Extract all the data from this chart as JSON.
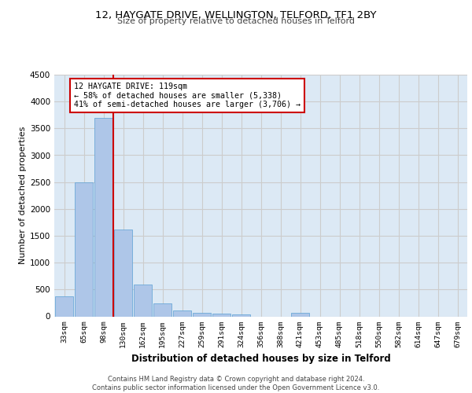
{
  "title1": "12, HAYGATE DRIVE, WELLINGTON, TELFORD, TF1 2BY",
  "title2": "Size of property relative to detached houses in Telford",
  "xlabel": "Distribution of detached houses by size in Telford",
  "ylabel": "Number of detached properties",
  "categories": [
    "33sqm",
    "65sqm",
    "98sqm",
    "130sqm",
    "162sqm",
    "195sqm",
    "227sqm",
    "259sqm",
    "291sqm",
    "324sqm",
    "356sqm",
    "388sqm",
    "421sqm",
    "453sqm",
    "485sqm",
    "518sqm",
    "550sqm",
    "582sqm",
    "614sqm",
    "647sqm",
    "679sqm"
  ],
  "values": [
    370,
    2500,
    3700,
    1620,
    590,
    235,
    105,
    65,
    45,
    40,
    0,
    0,
    60,
    0,
    0,
    0,
    0,
    0,
    0,
    0,
    0
  ],
  "bar_color": "#aec6e8",
  "bar_edge_color": "#5a9fd4",
  "annotation_text": "12 HAYGATE DRIVE: 119sqm\n← 58% of detached houses are smaller (5,338)\n41% of semi-detached houses are larger (3,706) →",
  "annotation_box_color": "#ffffff",
  "annotation_box_edge_color": "#cc0000",
  "red_line_color": "#cc0000",
  "grid_color": "#cccccc",
  "background_color": "#dce9f5",
  "footer_text": "Contains HM Land Registry data © Crown copyright and database right 2024.\nContains public sector information licensed under the Open Government Licence v3.0.",
  "ylim": [
    0,
    4500
  ],
  "yticks": [
    0,
    500,
    1000,
    1500,
    2000,
    2500,
    3000,
    3500,
    4000,
    4500
  ]
}
